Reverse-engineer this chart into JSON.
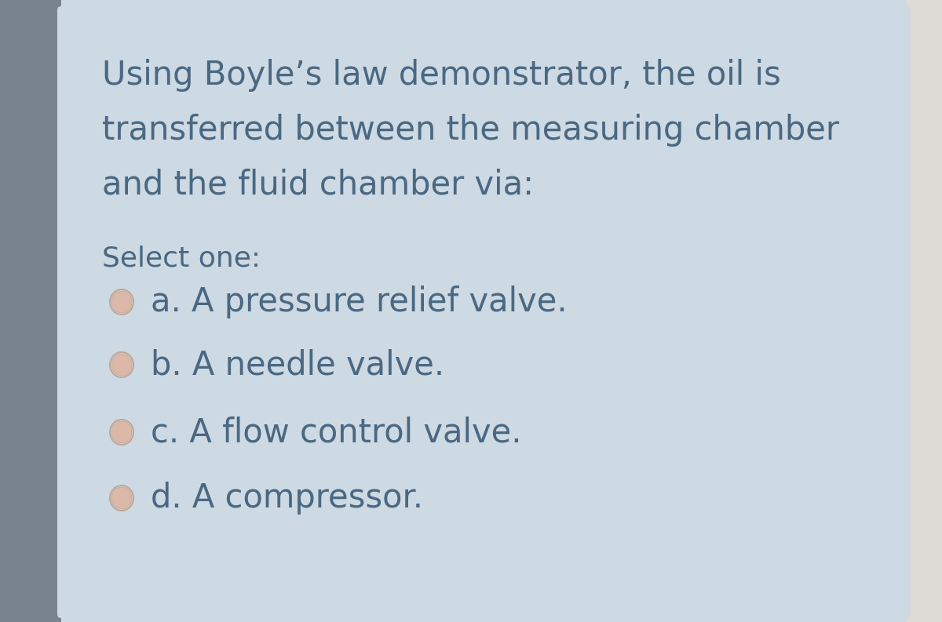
{
  "background_color": "#cdd9e3",
  "outer_bg_left": "#9aa4ae",
  "outer_bg_right": "#e8e4e0",
  "question_lines": [
    "Using Boyle’s law demonstrator, the oil is",
    "transferred between the measuring chamber",
    "and the fluid chamber via:"
  ],
  "select_label": "Select one:",
  "options": [
    "a. A pressure relief valve.",
    "b. A needle valve.",
    "c. A flow control valve.",
    "d. A compressor."
  ],
  "text_color": "#4a6882",
  "radio_fill_color": "#dbb8a8",
  "radio_border_color": "#c0a898",
  "radio_bg_color": "#cdd9e3",
  "question_fontsize": 30,
  "select_fontsize": 26,
  "option_fontsize": 30,
  "figsize": [
    12.0,
    7.93
  ]
}
